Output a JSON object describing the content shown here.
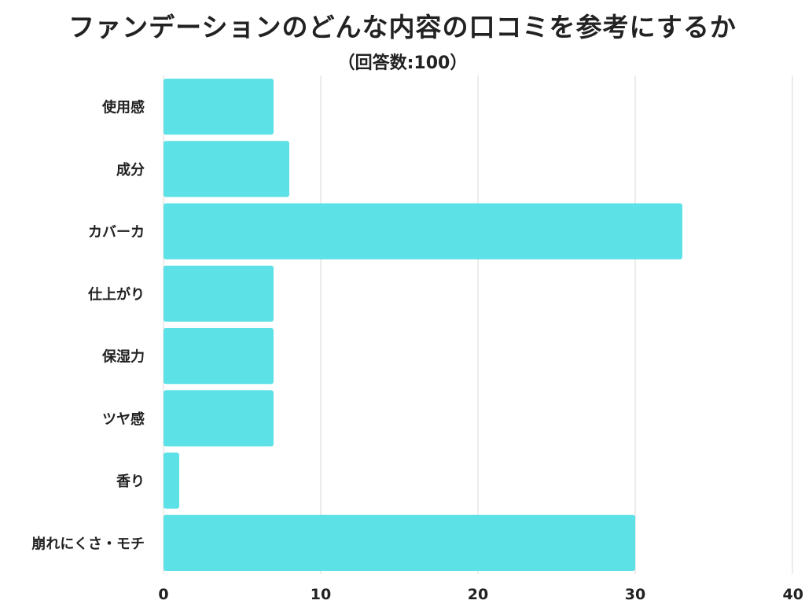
{
  "chart_data": {
    "type": "bar",
    "orientation": "horizontal",
    "title": "ファンデーションのどんな内容の口コミを参考にするか",
    "subtitle": "（回答数:100）",
    "categories": [
      "使用感",
      "成分",
      "カバーカ",
      "仕上がり",
      "保湿力",
      "ツヤ感",
      "香り",
      "崩れにくさ・モチ"
    ],
    "values": [
      7,
      8,
      33,
      7,
      7,
      7,
      1,
      30
    ],
    "xlim": [
      0,
      40
    ],
    "xticks": [
      "0",
      "10",
      "20",
      "30",
      "40"
    ],
    "grid": "vertical",
    "bar_color": "#5ce1e6",
    "grid_color": "#d9d9d9"
  }
}
